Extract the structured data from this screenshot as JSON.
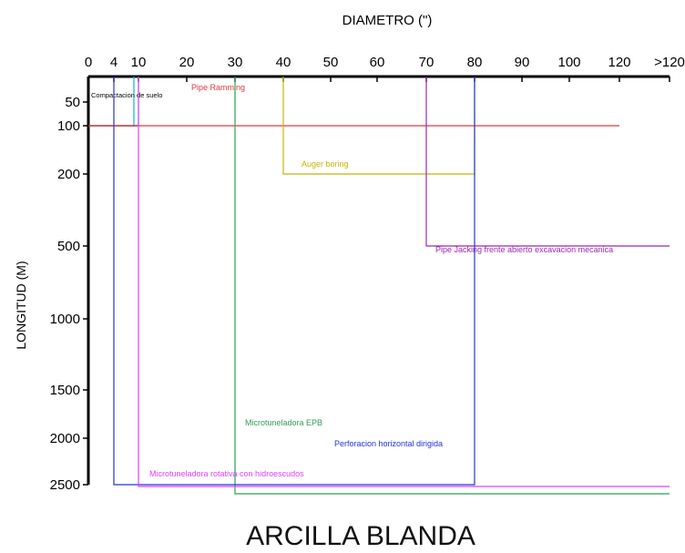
{
  "chart_data": {
    "type": "line",
    "title": "ARCILLA BLANDA",
    "xlabel": "DIAMETRO (\")",
    "ylabel": "LONGITUD (M)",
    "x_ticks": [
      "0",
      "4",
      "10",
      "20",
      "30",
      "40",
      "50",
      "60",
      "70",
      "80",
      "90",
      "100",
      "120",
      ">120"
    ],
    "y_ticks": [
      "50",
      "100",
      "200",
      "500",
      "1000",
      "1500",
      "2000",
      "2500"
    ],
    "series": [
      {
        "name": "Compactacion de suelo",
        "color": "#00bcd4",
        "x": [
          0,
          10
        ],
        "y": [
          100,
          100
        ],
        "label_color": "#000000"
      },
      {
        "name": "Pipe Ramming",
        "color": "#e53935",
        "x": [
          0,
          120
        ],
        "y": [
          100,
          100
        ]
      },
      {
        "name": "Auger boring",
        "color": "#c8b400",
        "x": [
          40,
          80
        ],
        "y": [
          200,
          200
        ]
      },
      {
        "name": "Pipe Jacking frente abierto excavacion mecanica",
        "color": "#9c27b0",
        "x": [
          70,
          ">120"
        ],
        "y": [
          500,
          500
        ]
      },
      {
        "name": "Microtuneladora EPB",
        "color": "#2e9e55",
        "x": [
          30,
          ">120"
        ],
        "y": [
          2500,
          2500
        ]
      },
      {
        "name": "Perforacion horizontal dirigida",
        "color": "#2233dd",
        "x": [
          4,
          80
        ],
        "y": [
          2500,
          2500
        ]
      },
      {
        "name": "Microtuneladora rotativa con hidroescudos",
        "color": "#e040fb",
        "x": [
          10,
          ">120"
        ],
        "y": [
          2500,
          2500
        ]
      }
    ]
  }
}
